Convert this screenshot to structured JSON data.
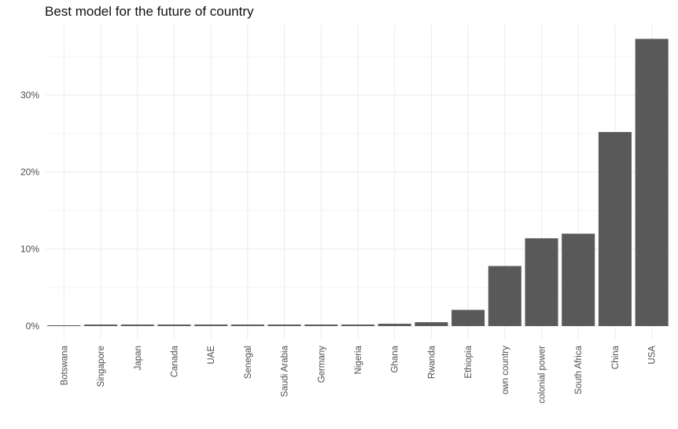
{
  "chart_data": {
    "type": "bar",
    "title": "Best model for the future of country",
    "xlabel": "",
    "ylabel": "",
    "categories": [
      "Botswana",
      "Singapore",
      "Japan",
      "Canada",
      "UAE",
      "Senegal",
      "Saudi Arabia",
      "Germany",
      "Nigeria",
      "Ghana",
      "Rwanda",
      "Ethiopia",
      "own country",
      "colonial power",
      "South Africa",
      "China",
      "USA"
    ],
    "values": [
      0.1,
      0.2,
      0.2,
      0.2,
      0.2,
      0.2,
      0.2,
      0.2,
      0.2,
      0.3,
      0.5,
      2.1,
      7.8,
      11.4,
      12.0,
      25.2,
      37.3
    ],
    "value_format": "percent",
    "ylim": [
      0,
      38
    ],
    "yticks": [
      0,
      10,
      20,
      30
    ],
    "ytick_labels": [
      "0%",
      "10%",
      "20%",
      "30%"
    ],
    "grid": true,
    "legend": "none",
    "colors": {
      "bar": "#595959",
      "grid_major": "#ebebeb",
      "grid_minor": "#f2f2f2",
      "text": "#4d4d4d",
      "title": "#111111"
    }
  }
}
